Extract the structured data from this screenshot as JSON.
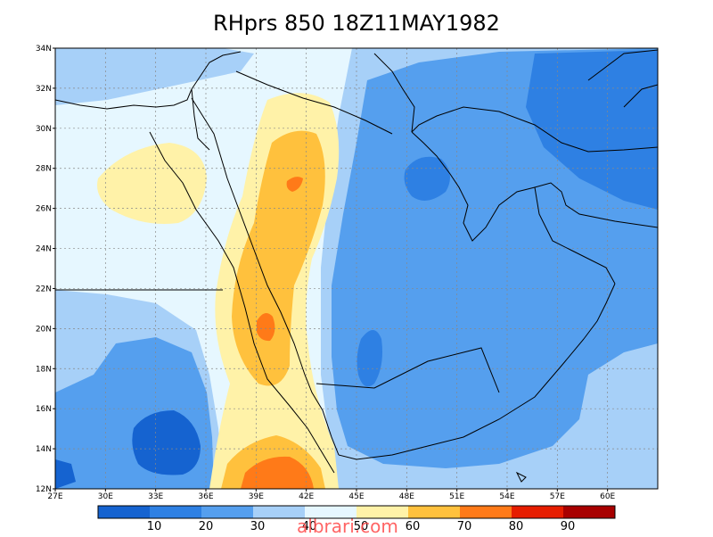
{
  "title": "RHprs 850 18Z11MAY1982",
  "lat_labels": [
    "34N",
    "32N",
    "30N",
    "28N",
    "26N",
    "24N",
    "22N",
    "20N",
    "18N",
    "16N",
    "14N",
    "12N"
  ],
  "lon_labels": [
    "27E",
    "30E",
    "33E",
    "36E",
    "39E",
    "42E",
    "45E",
    "48E",
    "51E",
    "54E",
    "57E",
    "60E"
  ],
  "colorbar": {
    "colors": [
      "#1563d0",
      "#2e80e3",
      "#559fee",
      "#a7d0f8",
      "#e6f7ff",
      "#fff2a8",
      "#ffc13d",
      "#ff7a18",
      "#e61d00",
      "#a80000"
    ],
    "labels": [
      "10",
      "20",
      "30",
      "40",
      "50",
      "60",
      "70",
      "80",
      "90"
    ]
  },
  "watermark": "albrari.com"
}
